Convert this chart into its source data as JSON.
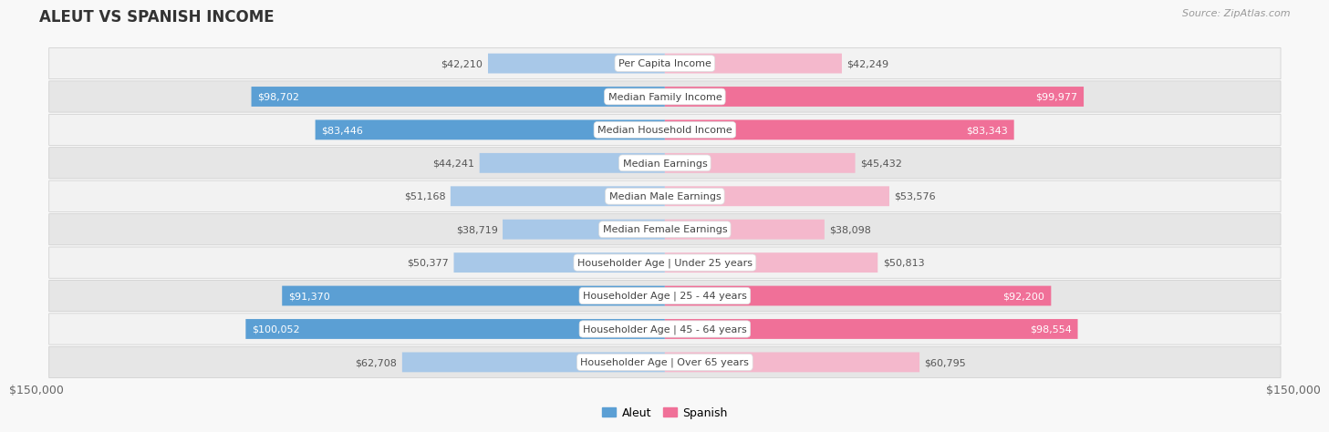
{
  "title": "ALEUT VS SPANISH INCOME",
  "source": "Source: ZipAtlas.com",
  "max_value": 150000,
  "categories": [
    "Per Capita Income",
    "Median Family Income",
    "Median Household Income",
    "Median Earnings",
    "Median Male Earnings",
    "Median Female Earnings",
    "Householder Age | Under 25 years",
    "Householder Age | 25 - 44 years",
    "Householder Age | 45 - 64 years",
    "Householder Age | Over 65 years"
  ],
  "aleut_values": [
    42210,
    98702,
    83446,
    44241,
    51168,
    38719,
    50377,
    91370,
    100052,
    62708
  ],
  "spanish_values": [
    42249,
    99977,
    83343,
    45432,
    53576,
    38098,
    50813,
    92200,
    98554,
    60795
  ],
  "aleut_color_light": "#a8c8e8",
  "aleut_color_dark": "#5b9fd4",
  "spanish_color_light": "#f4b8cc",
  "spanish_color_dark": "#f07098",
  "label_color_dark": "#555555",
  "label_color_white": "#ffffff",
  "row_bg_light": "#f2f2f2",
  "row_bg_dark": "#e6e6e6",
  "fig_bg": "#f8f8f8",
  "threshold_white_label": 65000
}
